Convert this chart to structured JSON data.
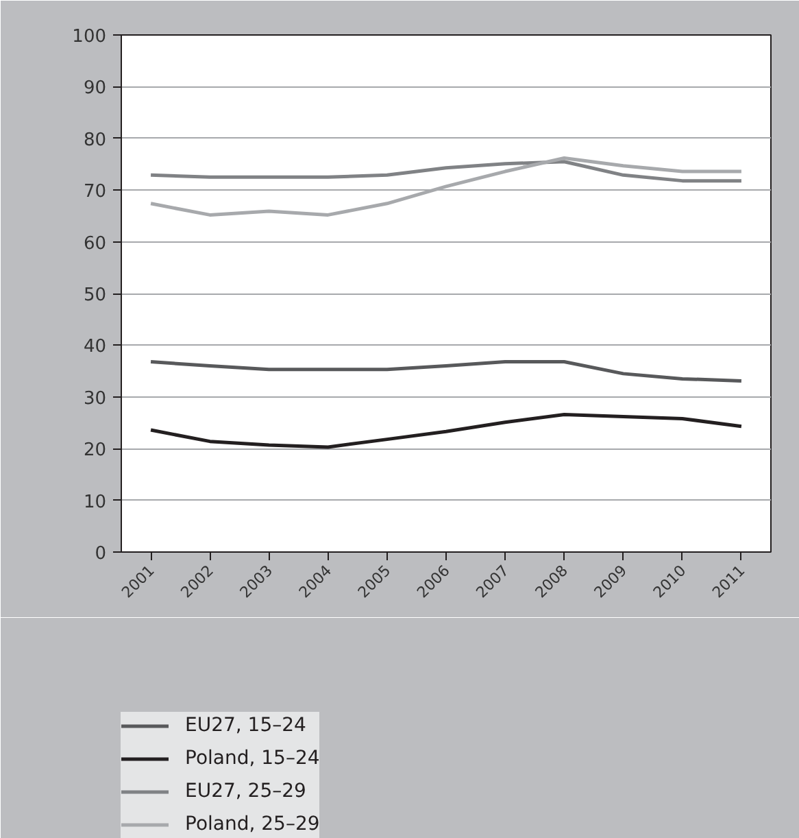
{
  "chart_data": {
    "type": "line",
    "categories": [
      "2001",
      "2002",
      "2003",
      "2004",
      "2005",
      "2006",
      "2007",
      "2008",
      "2009",
      "2010",
      "2011"
    ],
    "series": [
      {
        "name": "EU27, 15–24",
        "color": "#58595b",
        "values": [
          36.8,
          36,
          35.3,
          35.3,
          35.3,
          36,
          36.8,
          36.8,
          34.5,
          33.5,
          33.1
        ]
      },
      {
        "name": "Poland, 15–24",
        "color": "#231f20",
        "values": [
          23.6,
          21.4,
          20.7,
          20.3,
          21.8,
          23.3,
          25.1,
          26.6,
          26.2,
          25.8,
          24.3
        ]
      },
      {
        "name": "EU27, 25–29",
        "color": "#808285",
        "values": [
          72.9,
          72.5,
          72.5,
          72.5,
          72.9,
          74.3,
          75.1,
          75.5,
          72.9,
          71.8,
          71.8
        ]
      },
      {
        "name": "Poland, 25–29",
        "color": "#a7a9ac",
        "values": [
          67.4,
          65.2,
          65.9,
          65.2,
          67.4,
          70.7,
          73.6,
          76.2,
          74.7,
          73.6,
          73.6
        ]
      }
    ],
    "ylim": [
      0,
      100
    ],
    "yticks": [
      0,
      10,
      20,
      30,
      40,
      50,
      60,
      70,
      80,
      90,
      100
    ],
    "grid": "y",
    "legend": "bottom",
    "marker": "none",
    "line_style": "solid"
  }
}
